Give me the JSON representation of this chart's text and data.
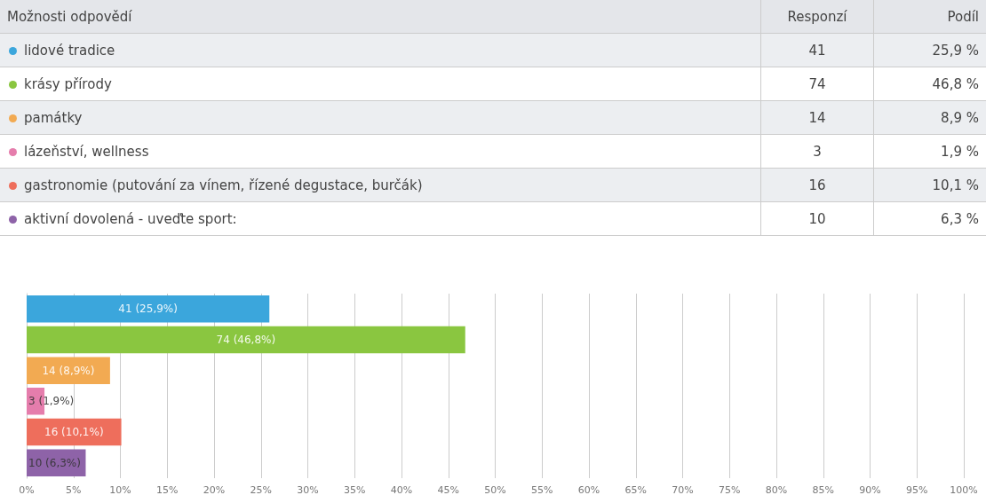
{
  "chart_data": [
    {
      "type": "other",
      "annotations": [
        "Možnosti odpovědí",
        "Responzí",
        "Podíl",
        "lidové tradice",
        "41",
        "25,9 %",
        "krásy přírody",
        "74",
        "46,8 %",
        "památky",
        "14",
        "8,9 %",
        "lázeňství, wellness",
        "3",
        "1,9 %",
        "gastronomie (putování za vínem, řízené degustace, burčák)",
        "16",
        "10,1 %",
        "aktivní dovolená - uveďte sport:",
        "10",
        "6,3 %"
      ]
    },
    {
      "type": "bar",
      "orientation": "horizontal",
      "categories": [
        null,
        null,
        null,
        null,
        null,
        null
      ],
      "values": [
        25.9,
        46.8,
        8.9,
        1.9,
        10.1,
        6.3
      ],
      "colors": [
        "#3ba6dc",
        "#8ac640",
        "#f2aa52",
        "#e57dac",
        "#ee6e5c",
        "#8e63a8"
      ],
      "value_labels": [
        "41 (25,9%)",
        "74 (46,8%)",
        "14 (8,9%)",
        "3 (1,9%)",
        "16 (10,1%)",
        "10 (6,3%)"
      ],
      "xlim": [
        0,
        100
      ],
      "xticks": [
        {
          "value": 0,
          "label": "0%"
        },
        {
          "value": 5,
          "label": "5%"
        },
        {
          "value": 10,
          "label": "10%"
        },
        {
          "value": 15,
          "label": "15%"
        },
        {
          "value": 20,
          "label": "20%"
        },
        {
          "value": 25,
          "label": "25%"
        },
        {
          "value": 30,
          "label": "30%"
        },
        {
          "value": 35,
          "label": "35%"
        },
        {
          "value": 40,
          "label": "40%"
        },
        {
          "value": 45,
          "label": "45%"
        },
        {
          "value": 50,
          "label": "50%"
        },
        {
          "value": 55,
          "label": "55%"
        },
        {
          "value": 60,
          "label": "60%"
        },
        {
          "value": 65,
          "label": "65%"
        },
        {
          "value": 70,
          "label": "70%"
        },
        {
          "value": 75,
          "label": "75%"
        },
        {
          "value": 80,
          "label": "80%"
        },
        {
          "value": 85,
          "label": "85%"
        },
        {
          "value": 90,
          "label": "90%"
        },
        {
          "value": 95,
          "label": "95%"
        },
        {
          "value": 100,
          "label": "100%"
        }
      ],
      "grid": "x"
    }
  ]
}
